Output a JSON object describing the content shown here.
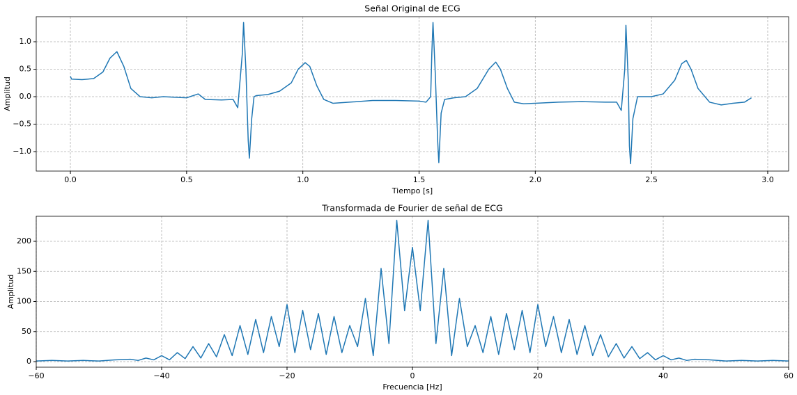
{
  "chart_data": [
    {
      "type": "line",
      "title": "Señal Original de ECG",
      "xlabel": "Tiempo [s]",
      "ylabel": "Amplitud",
      "x": [
        0,
        0.005,
        0.05,
        0.1,
        0.14,
        0.17,
        0.2,
        0.23,
        0.26,
        0.3,
        0.35,
        0.4,
        0.45,
        0.5,
        0.55,
        0.58,
        0.65,
        0.7,
        0.72,
        0.74,
        0.745,
        0.755,
        0.765,
        0.77,
        0.78,
        0.79,
        0.8,
        0.85,
        0.9,
        0.95,
        0.98,
        1.01,
        1.03,
        1.06,
        1.09,
        1.13,
        1.2,
        1.3,
        1.4,
        1.5,
        1.53,
        1.55,
        1.555,
        1.56,
        1.57,
        1.58,
        1.585,
        1.595,
        1.61,
        1.65,
        1.7,
        1.75,
        1.8,
        1.83,
        1.85,
        1.88,
        1.91,
        1.95,
        2.0,
        2.1,
        2.2,
        2.3,
        2.35,
        2.37,
        2.385,
        2.39,
        2.4,
        2.405,
        2.41,
        2.42,
        2.44,
        2.5,
        2.55,
        2.6,
        2.63,
        2.65,
        2.67,
        2.7,
        2.75,
        2.8,
        2.85,
        2.9,
        2.93
      ],
      "series": [
        {
          "color": "#1f77b4",
          "values": [
            0.37,
            0.32,
            0.31,
            0.33,
            0.45,
            0.7,
            0.82,
            0.55,
            0.15,
            0.0,
            -0.02,
            0.0,
            -0.01,
            -0.02,
            0.05,
            -0.05,
            -0.06,
            -0.05,
            -0.2,
            0.8,
            1.35,
            0.5,
            -0.8,
            -1.12,
            -0.4,
            0.0,
            0.02,
            0.04,
            0.1,
            0.25,
            0.5,
            0.62,
            0.55,
            0.2,
            -0.05,
            -0.12,
            -0.1,
            -0.07,
            -0.07,
            -0.08,
            -0.1,
            0.0,
            0.8,
            1.35,
            0.4,
            -0.8,
            -1.2,
            -0.3,
            -0.05,
            -0.02,
            0.0,
            0.15,
            0.5,
            0.63,
            0.5,
            0.15,
            -0.1,
            -0.13,
            -0.12,
            -0.1,
            -0.09,
            -0.1,
            -0.1,
            -0.25,
            0.5,
            1.3,
            0.3,
            -0.9,
            -1.22,
            -0.4,
            0.0,
            0.0,
            0.05,
            0.3,
            0.6,
            0.66,
            0.5,
            0.15,
            -0.1,
            -0.15,
            -0.12,
            -0.1,
            -0.02
          ]
        }
      ],
      "xlim": [
        -0.147,
        3.09
      ],
      "ylim": [
        -1.354,
        1.456
      ],
      "xticks": [
        {
          "value": 0,
          "label": "0.0"
        },
        {
          "value": 0.5,
          "label": "0.5"
        },
        {
          "value": 1,
          "label": "1.0"
        },
        {
          "value": 1.5,
          "label": "1.5"
        },
        {
          "value": 2,
          "label": "2.0"
        },
        {
          "value": 2.5,
          "label": "2.5"
        },
        {
          "value": 3,
          "label": "3.0"
        }
      ],
      "yticks": [
        {
          "value": -1,
          "label": "−1.0"
        },
        {
          "value": -0.5,
          "label": "−0.5"
        },
        {
          "value": 0,
          "label": "0.0"
        },
        {
          "value": 0.5,
          "label": "0.5"
        },
        {
          "value": 1,
          "label": "1.0"
        }
      ],
      "grid": true
    },
    {
      "type": "line",
      "title": "Transformada de Fourier de señal de ECG",
      "xlabel": "Frecuencia [Hz]",
      "ylabel": "Amplitud",
      "x": [
        -60,
        -57.5,
        -55,
        -52.5,
        -50,
        -47.5,
        -45,
        -43.75,
        -42.5,
        -41.25,
        -40,
        -38.75,
        -37.5,
        -36.25,
        -35,
        -33.75,
        -32.5,
        -31.25,
        -30,
        -28.75,
        -27.5,
        -26.25,
        -25,
        -23.75,
        -22.5,
        -21.25,
        -20,
        -18.75,
        -17.5,
        -16.25,
        -15,
        -13.75,
        -12.5,
        -11.25,
        -10,
        -8.75,
        -7.5,
        -6.25,
        -5,
        -3.75,
        -2.5,
        -1.25,
        0,
        1.25,
        2.5,
        3.75,
        5,
        6.25,
        7.5,
        8.75,
        10,
        11.25,
        12.5,
        13.75,
        15,
        16.25,
        17.5,
        18.75,
        20,
        21.25,
        22.5,
        23.75,
        25,
        26.25,
        27.5,
        28.75,
        30,
        31.25,
        32.5,
        33.75,
        35,
        36.25,
        37.5,
        38.75,
        40,
        41.25,
        42.5,
        43.75,
        45,
        47.5,
        50,
        52.5,
        55,
        57.5,
        60
      ],
      "series": [
        {
          "color": "#1f77b4",
          "values": [
            1,
            2,
            1,
            2,
            1,
            3,
            4,
            2,
            6,
            3,
            10,
            3,
            15,
            5,
            25,
            6,
            30,
            8,
            45,
            10,
            60,
            12,
            70,
            15,
            75,
            25,
            95,
            15,
            85,
            20,
            80,
            12,
            75,
            15,
            60,
            25,
            105,
            10,
            155,
            30,
            235,
            85,
            190,
            85,
            235,
            30,
            155,
            10,
            105,
            25,
            60,
            15,
            75,
            12,
            80,
            20,
            85,
            15,
            95,
            25,
            75,
            15,
            70,
            12,
            60,
            10,
            45,
            8,
            30,
            6,
            25,
            5,
            15,
            3,
            10,
            3,
            6,
            2,
            4,
            3,
            1,
            2,
            1,
            2,
            1
          ]
        }
      ],
      "xlim": [
        -60,
        60
      ],
      "ylim": [
        -9.2,
        241.6
      ],
      "xticks": [
        {
          "value": -60,
          "label": "−60"
        },
        {
          "value": -40,
          "label": "−40"
        },
        {
          "value": -20,
          "label": "−20"
        },
        0,
        20,
        40,
        60
      ],
      "yticks": [
        0,
        50,
        100,
        150,
        200
      ],
      "grid": true
    }
  ]
}
